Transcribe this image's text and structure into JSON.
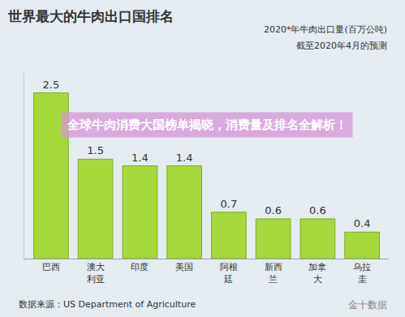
{
  "chart_data": {
    "type": "bar",
    "title": "世界最大的牛肉出口国排名",
    "subtitle": [
      "2020*年牛肉出口量(百万公吨)",
      "截至2020年4月的预测"
    ],
    "banner": "全球牛肉消费大国榜单揭晓，消费量及排名全解析！",
    "source": "数据来源：US Department of Agriculture",
    "watermark": "金十数据",
    "categories": [
      "巴西",
      "澳大利亚",
      "印度",
      "美国",
      "阿根廷",
      "新西兰",
      "加拿大",
      "乌拉圭"
    ],
    "values": [
      2.5,
      1.5,
      1.4,
      1.4,
      0.7,
      0.6,
      0.6,
      0.4
    ],
    "color": "#a6d83c",
    "ylim": [
      0,
      2.8
    ],
    "data_labels": true,
    "tick_labels": "x",
    "grid": false
  }
}
